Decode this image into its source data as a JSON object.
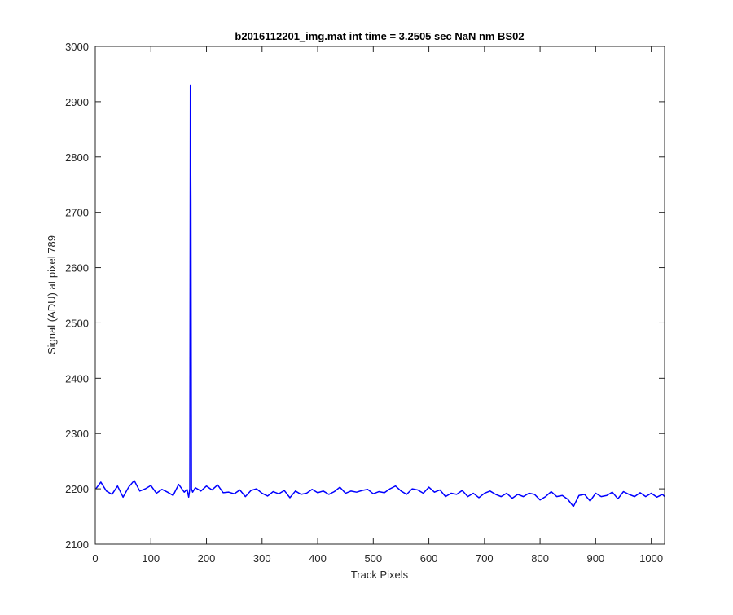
{
  "chart_data": {
    "type": "line",
    "title": "b2016112201_img.mat int time = 3.2505 sec  NaN nm BS02",
    "xlabel": "Track Pixels",
    "ylabel": "Signal (ADU) at pixel 789",
    "xlim": [
      0,
      1024
    ],
    "ylim": [
      2100,
      3000
    ],
    "xticks": [
      0,
      100,
      200,
      300,
      400,
      500,
      600,
      700,
      800,
      900,
      1000
    ],
    "yticks": [
      2100,
      2200,
      2300,
      2400,
      2500,
      2600,
      2700,
      2800,
      2900,
      3000
    ],
    "grid": false,
    "box": true,
    "series": [
      {
        "color": "#0000ff",
        "x": [
          1,
          10,
          20,
          30,
          40,
          50,
          60,
          70,
          80,
          90,
          100,
          110,
          120,
          130,
          140,
          150,
          160,
          165,
          168,
          170,
          171,
          172,
          173,
          175,
          180,
          190,
          200,
          210,
          220,
          230,
          240,
          250,
          260,
          270,
          280,
          290,
          300,
          310,
          320,
          330,
          340,
          350,
          360,
          370,
          380,
          390,
          400,
          410,
          420,
          430,
          440,
          450,
          460,
          470,
          480,
          490,
          500,
          510,
          520,
          530,
          540,
          550,
          560,
          570,
          580,
          590,
          600,
          610,
          620,
          630,
          640,
          650,
          660,
          670,
          680,
          690,
          700,
          710,
          720,
          730,
          740,
          750,
          760,
          770,
          780,
          790,
          800,
          810,
          820,
          830,
          840,
          850,
          860,
          870,
          880,
          890,
          900,
          910,
          920,
          930,
          940,
          950,
          960,
          970,
          980,
          990,
          1000,
          1010,
          1020,
          1024
        ],
        "y": [
          2200,
          2212,
          2196,
          2190,
          2205,
          2185,
          2203,
          2215,
          2196,
          2200,
          2206,
          2192,
          2199,
          2194,
          2188,
          2208,
          2194,
          2199,
          2185,
          2200,
          2930,
          2720,
          2200,
          2194,
          2202,
          2196,
          2205,
          2198,
          2207,
          2193,
          2194,
          2191,
          2198,
          2186,
          2197,
          2200,
          2192,
          2187,
          2195,
          2191,
          2197,
          2184,
          2196,
          2190,
          2192,
          2199,
          2193,
          2196,
          2190,
          2195,
          2203,
          2192,
          2196,
          2194,
          2197,
          2199,
          2191,
          2195,
          2193,
          2200,
          2205,
          2196,
          2190,
          2200,
          2198,
          2192,
          2203,
          2194,
          2198,
          2186,
          2192,
          2190,
          2197,
          2186,
          2192,
          2184,
          2192,
          2196,
          2190,
          2186,
          2192,
          2183,
          2190,
          2186,
          2192,
          2190,
          2180,
          2186,
          2195,
          2186,
          2188,
          2181,
          2168,
          2188,
          2190,
          2178,
          2192,
          2186,
          2188,
          2194,
          2182,
          2195,
          2190,
          2186,
          2193,
          2186,
          2192,
          2185,
          2190,
          2186
        ]
      }
    ]
  }
}
